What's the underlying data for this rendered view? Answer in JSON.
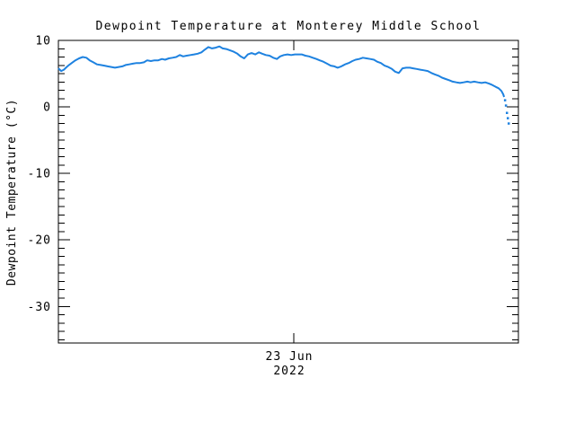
{
  "window": {
    "background": "#ffffff"
  },
  "colors": {
    "axis": "#000000",
    "text": "#000000",
    "line": "#1E82E0",
    "background": "#ffffff"
  },
  "chart_data": {
    "type": "line",
    "title": "Dewpoint Temperature at Monterey Middle School",
    "xlabel": "",
    "ylabel": "Dewpoint Temperature (°C)",
    "grid": false,
    "legend": false,
    "x_axis": {
      "tick_labels": [
        "23 Jun",
        "2022"
      ],
      "tick_position_fraction": 0.512
    },
    "y_axis": {
      "ticks": [
        10,
        0,
        -10,
        -20,
        -30
      ],
      "range": [
        -35.5,
        10
      ],
      "minor_step": 1.25
    },
    "series": [
      {
        "name": "dewpoint-temperature",
        "color": "#1E82E0",
        "units": "°C",
        "sparse_tail_count": 5,
        "points": [
          [
            0.0,
            5.8
          ],
          [
            0.006,
            5.4
          ],
          [
            0.012,
            5.6
          ],
          [
            0.018,
            6.0
          ],
          [
            0.023,
            6.3
          ],
          [
            0.029,
            6.6
          ],
          [
            0.037,
            7.0
          ],
          [
            0.045,
            7.3
          ],
          [
            0.053,
            7.5
          ],
          [
            0.061,
            7.4
          ],
          [
            0.068,
            7.0
          ],
          [
            0.076,
            6.7
          ],
          [
            0.084,
            6.4
          ],
          [
            0.092,
            6.3
          ],
          [
            0.1,
            6.2
          ],
          [
            0.107,
            6.1
          ],
          [
            0.115,
            6.0
          ],
          [
            0.123,
            5.9
          ],
          [
            0.131,
            6.0
          ],
          [
            0.139,
            6.1
          ],
          [
            0.146,
            6.3
          ],
          [
            0.154,
            6.4
          ],
          [
            0.162,
            6.5
          ],
          [
            0.17,
            6.6
          ],
          [
            0.178,
            6.6
          ],
          [
            0.186,
            6.7
          ],
          [
            0.193,
            7.0
          ],
          [
            0.201,
            6.9
          ],
          [
            0.209,
            7.0
          ],
          [
            0.217,
            7.0
          ],
          [
            0.225,
            7.2
          ],
          [
            0.232,
            7.1
          ],
          [
            0.24,
            7.3
          ],
          [
            0.248,
            7.4
          ],
          [
            0.256,
            7.5
          ],
          [
            0.264,
            7.8
          ],
          [
            0.271,
            7.6
          ],
          [
            0.279,
            7.7
          ],
          [
            0.287,
            7.8
          ],
          [
            0.295,
            7.9
          ],
          [
            0.303,
            8.0
          ],
          [
            0.311,
            8.2
          ],
          [
            0.318,
            8.6
          ],
          [
            0.326,
            9.0
          ],
          [
            0.334,
            8.8
          ],
          [
            0.342,
            8.9
          ],
          [
            0.35,
            9.1
          ],
          [
            0.357,
            8.8
          ],
          [
            0.365,
            8.7
          ],
          [
            0.373,
            8.5
          ],
          [
            0.381,
            8.3
          ],
          [
            0.389,
            8.0
          ],
          [
            0.396,
            7.6
          ],
          [
            0.404,
            7.3
          ],
          [
            0.412,
            7.9
          ],
          [
            0.42,
            8.1
          ],
          [
            0.428,
            7.9
          ],
          [
            0.436,
            8.2
          ],
          [
            0.443,
            8.0
          ],
          [
            0.451,
            7.8
          ],
          [
            0.459,
            7.7
          ],
          [
            0.467,
            7.4
          ],
          [
            0.475,
            7.2
          ],
          [
            0.482,
            7.6
          ],
          [
            0.49,
            7.8
          ],
          [
            0.498,
            7.9
          ],
          [
            0.506,
            7.8
          ],
          [
            0.514,
            7.9
          ],
          [
            0.521,
            7.9
          ],
          [
            0.529,
            7.9
          ],
          [
            0.537,
            7.7
          ],
          [
            0.545,
            7.6
          ],
          [
            0.553,
            7.4
          ],
          [
            0.561,
            7.2
          ],
          [
            0.568,
            7.0
          ],
          [
            0.576,
            6.8
          ],
          [
            0.584,
            6.5
          ],
          [
            0.592,
            6.2
          ],
          [
            0.6,
            6.1
          ],
          [
            0.607,
            5.9
          ],
          [
            0.615,
            6.1
          ],
          [
            0.623,
            6.4
          ],
          [
            0.631,
            6.6
          ],
          [
            0.639,
            6.9
          ],
          [
            0.646,
            7.1
          ],
          [
            0.654,
            7.2
          ],
          [
            0.662,
            7.4
          ],
          [
            0.67,
            7.3
          ],
          [
            0.678,
            7.2
          ],
          [
            0.686,
            7.1
          ],
          [
            0.693,
            6.8
          ],
          [
            0.701,
            6.6
          ],
          [
            0.709,
            6.2
          ],
          [
            0.717,
            6.0
          ],
          [
            0.725,
            5.7
          ],
          [
            0.732,
            5.3
          ],
          [
            0.74,
            5.1
          ],
          [
            0.748,
            5.8
          ],
          [
            0.756,
            5.9
          ],
          [
            0.764,
            5.9
          ],
          [
            0.771,
            5.8
          ],
          [
            0.779,
            5.7
          ],
          [
            0.787,
            5.6
          ],
          [
            0.795,
            5.5
          ],
          [
            0.803,
            5.4
          ],
          [
            0.811,
            5.1
          ],
          [
            0.818,
            4.9
          ],
          [
            0.826,
            4.7
          ],
          [
            0.834,
            4.4
          ],
          [
            0.842,
            4.2
          ],
          [
            0.85,
            4.0
          ],
          [
            0.857,
            3.8
          ],
          [
            0.865,
            3.7
          ],
          [
            0.873,
            3.6
          ],
          [
            0.881,
            3.7
          ],
          [
            0.889,
            3.8
          ],
          [
            0.896,
            3.7
          ],
          [
            0.904,
            3.8
          ],
          [
            0.912,
            3.7
          ],
          [
            0.92,
            3.6
          ],
          [
            0.928,
            3.7
          ],
          [
            0.936,
            3.5
          ],
          [
            0.943,
            3.3
          ],
          [
            0.951,
            3.0
          ],
          [
            0.957,
            2.8
          ],
          [
            0.963,
            2.4
          ],
          [
            0.967,
            1.9
          ],
          [
            0.969,
            1.5
          ],
          [
            0.971,
            1.0
          ],
          [
            0.973,
            0.2
          ],
          [
            0.975,
            -0.9
          ],
          [
            0.977,
            -1.7
          ],
          [
            0.979,
            -2.5
          ]
        ]
      }
    ]
  }
}
